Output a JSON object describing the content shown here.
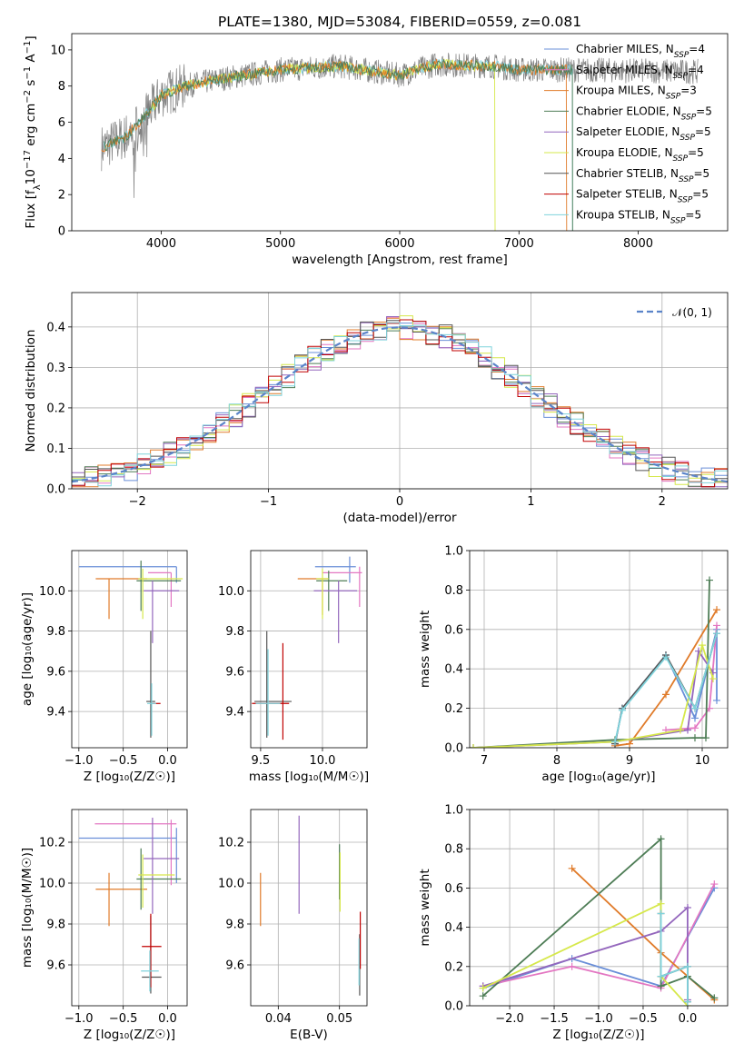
{
  "title": "PLATE=1380, MJD=53084, FIBERID=0559, z=0.081",
  "colors": {
    "Chabrier MILES": "#6a8fd8",
    "Salpeter MILES": "#e377c2",
    "Kroupa MILES": "#e07b2a",
    "Chabrier ELODIE": "#4e7d56",
    "Salpeter ELODIE": "#9467bd",
    "Kroupa ELODIE": "#d6e84b",
    "Chabrier STELIB": "#555555",
    "Salpeter STELIB": "#c00000",
    "Kroupa STELIB": "#7fd3dc",
    "data": "#808080",
    "gauss": "#5b84c9"
  },
  "chart_data": [
    {
      "type": "line",
      "xlabel": "wavelength [Angstrom, rest frame]",
      "ylabel": "Flux [f",
      "xlim": [
        3250,
        8750
      ],
      "ylim": [
        0,
        10.9
      ],
      "xticks": [
        4000,
        5000,
        6000,
        7000,
        8000
      ],
      "yticks": [
        0,
        2,
        4,
        6,
        8,
        10
      ],
      "legend": {
        "placement": "top-right",
        "entries": [
          {
            "model": "Chabrier MILES",
            "n": "4"
          },
          {
            "model": "Salpeter MILES",
            "n": "4"
          },
          {
            "model": "Kroupa MILES",
            "n": "3"
          },
          {
            "model": "Chabrier ELODIE",
            "n": "5"
          },
          {
            "model": "Salpeter ELODIE",
            "n": "5"
          },
          {
            "model": "Kroupa ELODIE",
            "n": "5"
          },
          {
            "model": "Chabrier STELIB",
            "n": "5"
          },
          {
            "model": "Salpeter STELIB",
            "n": "5"
          },
          {
            "model": "Kroupa STELIB",
            "n": "5"
          }
        ]
      },
      "continuum_points": [
        [
          3500,
          4.6
        ],
        [
          3700,
          5.2
        ],
        [
          3900,
          6.6
        ],
        [
          4000,
          7.5
        ],
        [
          4200,
          8.0
        ],
        [
          4500,
          8.4
        ],
        [
          5000,
          8.9
        ],
        [
          5500,
          9.1
        ],
        [
          6000,
          8.6
        ],
        [
          6300,
          9.2
        ],
        [
          6800,
          9.1
        ],
        [
          7000,
          8.9
        ],
        [
          7400,
          8.9
        ],
        [
          8500,
          8.8
        ]
      ]
    },
    {
      "type": "step",
      "xlabel": "(data-model)/error",
      "ylabel": "Normed distribution",
      "xlim": [
        -2.5,
        2.5
      ],
      "ylim": [
        0,
        0.485
      ],
      "xticks": [
        -2,
        -1,
        0,
        1,
        2
      ],
      "yticks": [
        0,
        0.1,
        0.2,
        0.3,
        0.4
      ],
      "grid": true,
      "legend": {
        "placement": "top-right",
        "label": "𝒩(0, 1)"
      }
    },
    {
      "type": "errorbar",
      "xlabel": "Z [log₁₀(Z/Z☉)]",
      "ylabel": "age  [log₁₀(age/yr)]",
      "xlim": [
        -1.08,
        0.22
      ],
      "ylim": [
        9.22,
        10.2
      ],
      "xticks": [
        -1.0,
        -0.5,
        0.0
      ],
      "yticks": [
        9.4,
        9.6,
        9.8,
        10.0
      ],
      "grid": true,
      "points": [
        {
          "model": "Chabrier MILES",
          "x": 0.1,
          "y": 10.12,
          "xerr": [
            1.1,
            0
          ],
          "yerr": [
            0.08,
            0
          ]
        },
        {
          "model": "Salpeter MILES",
          "x": 0.04,
          "y": 10.09,
          "xerr": [
            0.26,
            0
          ],
          "yerr": [
            0.17,
            0
          ]
        },
        {
          "model": "Kroupa MILES",
          "x": -0.66,
          "y": 10.06,
          "xerr": [
            0.15,
            0.43
          ],
          "yerr": [
            0.2,
            0
          ]
        },
        {
          "model": "Chabrier ELODIE",
          "x": -0.3,
          "y": 10.05,
          "xerr": [
            0.05,
            0.45
          ],
          "yerr": [
            0.15,
            0.1
          ]
        },
        {
          "model": "Salpeter ELODIE",
          "x": -0.17,
          "y": 10.0,
          "xerr": [
            0.1,
            0.3
          ],
          "yerr": [
            0.26,
            0.05
          ]
        },
        {
          "model": "Kroupa ELODIE",
          "x": -0.28,
          "y": 10.06,
          "xerr": [
            0.05,
            0.45
          ],
          "yerr": [
            0.2,
            0.05
          ]
        },
        {
          "model": "Chabrier STELIB",
          "x": -0.19,
          "y": 9.45,
          "xerr": [
            0.05,
            0.05
          ],
          "yerr": [
            0.18,
            0.35
          ]
        },
        {
          "model": "Salpeter STELIB",
          "x": -0.13,
          "y": 9.44,
          "xerr": [
            0.05,
            0.05
          ],
          "yerr": [
            0,
            0
          ]
        },
        {
          "model": "Kroupa STELIB",
          "x": -0.18,
          "y": 9.44,
          "xerr": [
            0.05,
            0.05
          ],
          "yerr": [
            0.16,
            0.1
          ]
        }
      ]
    },
    {
      "type": "errorbar",
      "xlabel": "mass [log₁₀(M/M☉)]",
      "ylabel": "",
      "xlim": [
        9.42,
        10.36
      ],
      "ylim": [
        9.22,
        10.2
      ],
      "xticks": [
        9.5,
        10.0
      ],
      "yticks": [
        9.4,
        9.6,
        9.8,
        10.0
      ],
      "grid": true,
      "points": [
        {
          "model": "Chabrier MILES",
          "x": 10.22,
          "y": 10.12,
          "xerr": [
            0.28,
            0.05
          ],
          "yerr": [
            0.08,
            0.05
          ]
        },
        {
          "model": "Salpeter MILES",
          "x": 10.3,
          "y": 10.09,
          "xerr": [
            0.3,
            0.02
          ],
          "yerr": [
            0.17,
            0.03
          ]
        },
        {
          "model": "Kroupa MILES",
          "x": 10.0,
          "y": 10.06,
          "xerr": [
            0.2,
            0.05
          ],
          "yerr": [
            0.18,
            0
          ]
        },
        {
          "model": "Chabrier ELODIE",
          "x": 10.05,
          "y": 10.05,
          "xerr": [
            0.1,
            0.15
          ],
          "yerr": [
            0.15,
            0.05
          ]
        },
        {
          "model": "Salpeter ELODIE",
          "x": 10.13,
          "y": 10.0,
          "xerr": [
            0.2,
            0.15
          ],
          "yerr": [
            0.26,
            0.05
          ]
        },
        {
          "model": "Kroupa ELODIE",
          "x": 10.0,
          "y": 10.06,
          "xerr": [
            0.05,
            0.05
          ],
          "yerr": [
            0.2,
            0.05
          ]
        },
        {
          "model": "Chabrier STELIB",
          "x": 9.55,
          "y": 9.45,
          "xerr": [
            0.1,
            0.2
          ],
          "yerr": [
            0.18,
            0.35
          ]
        },
        {
          "model": "Salpeter STELIB",
          "x": 9.68,
          "y": 9.44,
          "xerr": [
            0.25,
            0.05
          ],
          "yerr": [
            0.18,
            0.3
          ]
        },
        {
          "model": "Kroupa STELIB",
          "x": 9.56,
          "y": 9.44,
          "xerr": [
            0.1,
            0.1
          ],
          "yerr": [
            0.16,
            0.27
          ]
        }
      ]
    },
    {
      "type": "line",
      "xlabel": "age  [log₁₀(age/yr)]",
      "ylabel": "mass weight",
      "xlim": [
        6.8,
        10.35
      ],
      "ylim": [
        0,
        1.0
      ],
      "xticks": [
        7,
        8,
        9,
        10
      ],
      "yticks": [
        0.0,
        0.2,
        0.4,
        0.6,
        0.8,
        1.0
      ],
      "grid": true,
      "series": [
        {
          "name": "Chabrier MILES",
          "x": [
            8.8,
            8.9,
            9.5,
            9.9,
            10.2,
            10.2
          ],
          "y": [
            0.02,
            0.2,
            0.47,
            0.15,
            0.6,
            0.24
          ]
        },
        {
          "name": "Salpeter MILES",
          "x": [
            9.5,
            9.9,
            10.1,
            10.2
          ],
          "y": [
            0.09,
            0.1,
            0.2,
            0.62
          ]
        },
        {
          "name": "Kroupa MILES",
          "x": [
            8.8,
            9.0,
            9.5,
            10.2
          ],
          "y": [
            0.01,
            0.02,
            0.27,
            0.7
          ]
        },
        {
          "name": "Chabrier ELODIE",
          "x": [
            6.85,
            8.8,
            9.9,
            10.05,
            10.1
          ],
          "y": [
            0.0,
            0.04,
            0.05,
            0.05,
            0.85
          ]
        },
        {
          "name": "Salpeter ELODIE",
          "x": [
            6.85,
            8.8,
            9.8,
            9.95,
            10.15
          ],
          "y": [
            0.0,
            0.03,
            0.09,
            0.49,
            0.38
          ]
        },
        {
          "name": "Kroupa ELODIE",
          "x": [
            6.85,
            8.8,
            9.7,
            10.0,
            10.15
          ],
          "y": [
            0.0,
            0.03,
            0.09,
            0.52,
            0.35
          ]
        },
        {
          "name": "Chabrier STELIB",
          "x": [
            8.8,
            8.9,
            9.5,
            9.9,
            10.2
          ],
          "y": [
            0.02,
            0.2,
            0.47,
            0.2,
            0.58
          ]
        },
        {
          "name": "Kroupa STELIB",
          "x": [
            8.8,
            8.9,
            9.5,
            9.9,
            10.2
          ],
          "y": [
            0.03,
            0.19,
            0.46,
            0.2,
            0.58
          ]
        }
      ]
    },
    {
      "type": "errorbar",
      "xlabel": "Z [log₁₀(Z/Z☉)]",
      "ylabel": "mass [log₁₀(M/M☉)]",
      "xlim": [
        -1.08,
        0.22
      ],
      "ylim": [
        9.4,
        10.36
      ],
      "xticks": [
        -1.0,
        -0.5,
        0.0
      ],
      "yticks": [
        9.6,
        9.8,
        10.0,
        10.2
      ],
      "grid": true,
      "points": [
        {
          "model": "Chabrier MILES",
          "x": 0.1,
          "y": 10.22,
          "xerr": [
            1.1,
            0
          ],
          "yerr": [
            0.22,
            0.05
          ]
        },
        {
          "model": "Salpeter MILES",
          "x": 0.04,
          "y": 10.29,
          "xerr": [
            0.86,
            0.06
          ],
          "yerr": [
            0.3,
            0.02
          ]
        },
        {
          "model": "Kroupa MILES",
          "x": -0.66,
          "y": 9.97,
          "xerr": [
            0.15,
            0.43
          ],
          "yerr": [
            0.18,
            0.08
          ]
        },
        {
          "model": "Chabrier ELODIE",
          "x": -0.3,
          "y": 10.02,
          "xerr": [
            0.05,
            0.45
          ],
          "yerr": [
            0.15,
            0.15
          ]
        },
        {
          "model": "Salpeter ELODIE",
          "x": -0.17,
          "y": 10.12,
          "xerr": [
            0.1,
            0.3
          ],
          "yerr": [
            0.27,
            0.2
          ]
        },
        {
          "model": "Kroupa ELODIE",
          "x": -0.28,
          "y": 10.04,
          "xerr": [
            0.05,
            0.36
          ],
          "yerr": [
            0.16,
            0.1
          ]
        },
        {
          "model": "Chabrier STELIB",
          "x": -0.19,
          "y": 9.54,
          "xerr": [
            0.1,
            0.12
          ],
          "yerr": [
            0.08,
            0.3
          ]
        },
        {
          "model": "Salpeter STELIB",
          "x": -0.19,
          "y": 9.69,
          "xerr": [
            0.1,
            0.12
          ],
          "yerr": [
            0.2,
            0.16
          ]
        },
        {
          "model": "Kroupa STELIB",
          "x": -0.2,
          "y": 9.57,
          "xerr": [
            0.1,
            0.1
          ],
          "yerr": [
            0.1,
            0.1
          ]
        }
      ]
    },
    {
      "type": "errorbar",
      "xlabel": "E(B-V)",
      "ylabel": "",
      "xlim": [
        0.0355,
        0.0545
      ],
      "ylim": [
        9.4,
        10.36
      ],
      "xticks": [
        0.04,
        0.05
      ],
      "yticks": [
        9.6,
        9.8,
        10.0,
        10.2
      ],
      "grid": true,
      "points": [
        {
          "model": "Kroupa MILES",
          "x": 0.0371,
          "y": 9.92,
          "xerr": [
            0,
            0
          ],
          "yerr": [
            0.13,
            0.13
          ]
        },
        {
          "model": "Salpeter ELODIE",
          "x": 0.0434,
          "y": 10.1,
          "xerr": [
            0,
            0
          ],
          "yerr": [
            0.25,
            0.23
          ]
        },
        {
          "model": "Chabrier ELODIE",
          "x": 0.05,
          "y": 10.04,
          "xerr": [
            0,
            0
          ],
          "yerr": [
            0.12,
            0.15
          ]
        },
        {
          "model": "Kroupa ELODIE",
          "x": 0.0501,
          "y": 10.0,
          "xerr": [
            0,
            0
          ],
          "yerr": [
            0.14,
            0.15
          ]
        },
        {
          "model": "Chabrier STELIB",
          "x": 0.0533,
          "y": 9.6,
          "xerr": [
            0,
            0
          ],
          "yerr": [
            0.15,
            0.15
          ]
        },
        {
          "model": "Salpeter STELIB",
          "x": 0.0534,
          "y": 9.7,
          "xerr": [
            0,
            0
          ],
          "yerr": [
            0.12,
            0.16
          ]
        },
        {
          "model": "Kroupa STELIB",
          "x": 0.0532,
          "y": 9.6,
          "xerr": [
            0,
            0
          ],
          "yerr": [
            0.1,
            0.13
          ]
        }
      ]
    },
    {
      "type": "line",
      "xlabel": "Z [log₁₀(Z/Z☉)]",
      "ylabel": "mass weight",
      "xlim": [
        -2.45,
        0.45
      ],
      "ylim": [
        0,
        1.0
      ],
      "xticks": [
        -2.0,
        -1.5,
        -1.0,
        -0.5,
        0.0
      ],
      "yticks": [
        0.0,
        0.2,
        0.4,
        0.6,
        0.8,
        1.0
      ],
      "grid": true,
      "series": [
        {
          "name": "Chabrier MILES",
          "x": [
            -2.3,
            -1.3,
            -0.3,
            0.3
          ],
          "y": [
            0.09,
            0.24,
            0.1,
            0.6
          ]
        },
        {
          "name": "Salpeter MILES",
          "x": [
            -2.3,
            -1.3,
            -0.3,
            0.3
          ],
          "y": [
            0.1,
            0.2,
            0.09,
            0.62
          ]
        },
        {
          "name": "Kroupa MILES",
          "x": [
            -1.3,
            -0.3,
            0.3
          ],
          "y": [
            0.7,
            0.27,
            0.03
          ]
        },
        {
          "name": "Chabrier ELODIE",
          "x": [
            -2.3,
            -0.3,
            -0.3,
            0.0,
            0.3
          ],
          "y": [
            0.05,
            0.85,
            0.1,
            0.15,
            0.04
          ]
        },
        {
          "name": "Salpeter ELODIE",
          "x": [
            -2.3,
            -0.3,
            0.0,
            0.0
          ],
          "y": [
            0.1,
            0.38,
            0.5,
            0.03
          ]
        },
        {
          "name": "Kroupa ELODIE",
          "x": [
            -2.3,
            -0.3,
            -0.3,
            0.0
          ],
          "y": [
            0.09,
            0.52,
            0.15,
            0.0
          ]
        },
        {
          "name": "Chabrier STELIB",
          "x": [
            -0.3,
            -0.3,
            0.0,
            0.0
          ],
          "y": [
            0.47,
            0.15,
            0.2,
            0.02
          ]
        },
        {
          "name": "Kroupa STELIB",
          "x": [
            -0.3,
            -0.3,
            0.0,
            0.0
          ],
          "y": [
            0.47,
            0.15,
            0.2,
            0.02
          ]
        }
      ]
    }
  ]
}
